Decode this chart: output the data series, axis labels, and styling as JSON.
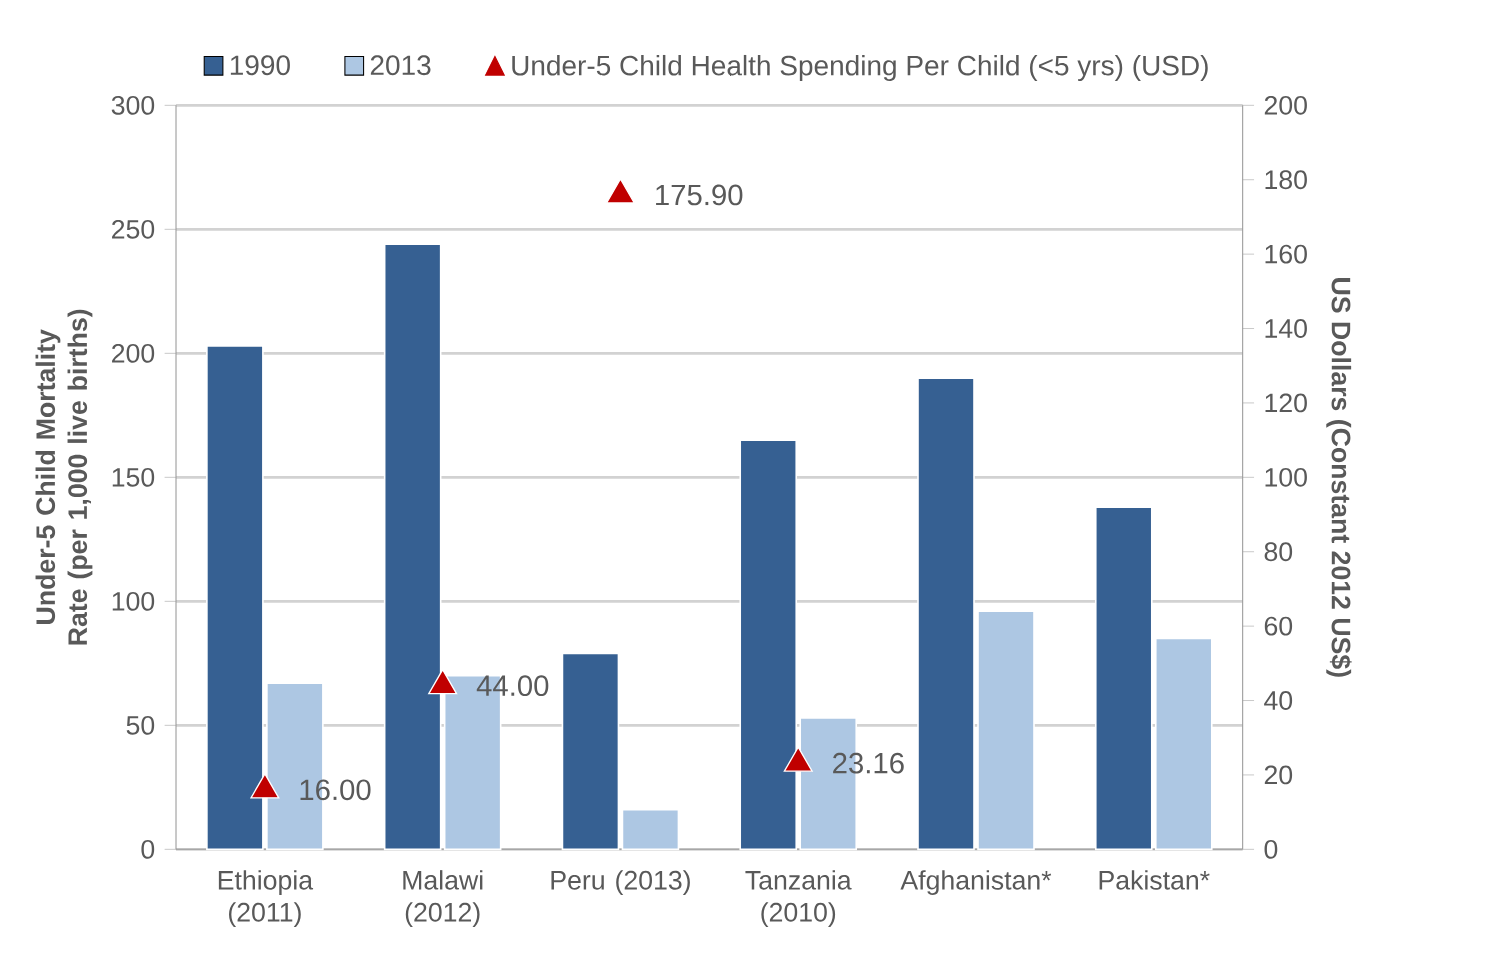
{
  "chart_data": {
    "type": "bar",
    "categories": [
      "Ethiopia (2011)",
      "Malawi (2012)",
      "Peru (2013)",
      "Tanzania (2010)",
      "Afghanistan*",
      "Pakistan*"
    ],
    "series": [
      {
        "name": "1990",
        "color": "#366092",
        "values": [
          203,
          244,
          79,
          165,
          190,
          138
        ]
      },
      {
        "name": "2013",
        "color": "#adc7e3",
        "values": [
          67,
          70,
          16,
          53,
          96,
          85
        ]
      },
      {
        "name": "Under-5 Child Health Spending Per Child (<5 yrs) (USD)",
        "type": "scatter",
        "axis": "y2",
        "color": "#c00000",
        "marker": "triangle",
        "values": [
          16,
          44,
          175.9,
          23.16,
          null,
          null
        ],
        "value_labels": [
          "16.00",
          "44.00",
          "175.90",
          "23.16",
          null,
          null
        ]
      }
    ],
    "ylabel": "Under-5 Child Mortality Rate (per 1,000 live births)",
    "y2label": "US Dollars (Constant 2012 US$)",
    "ylim": [
      0,
      300
    ],
    "yticks": [
      0,
      50,
      100,
      150,
      200,
      250,
      300
    ],
    "y2lim": [
      0,
      200
    ],
    "y2ticks": [
      0,
      20,
      40,
      60,
      80,
      100,
      120,
      140,
      160,
      180,
      200
    ],
    "grid": "y",
    "legend": "top"
  }
}
